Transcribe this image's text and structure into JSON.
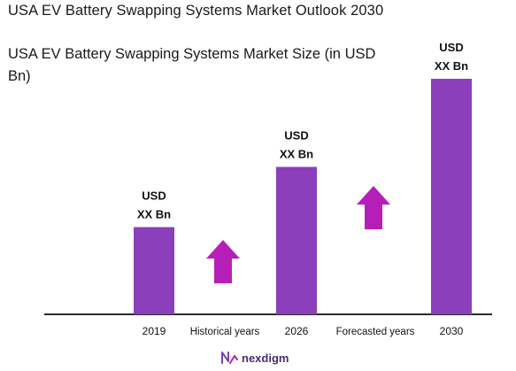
{
  "title": "USA EV Battery Swapping Systems Market Outlook 2030",
  "chart_data": {
    "type": "bar",
    "title": "USA EV Battery Swapping Systems Market Size (in USD Bn)",
    "categories": [
      "2019",
      "2026",
      "2030"
    ],
    "series": [
      {
        "values": [
          1,
          1.69,
          2.7
        ]
      }
    ],
    "value_labels": [
      {
        "line1": "USD",
        "line2": "XX Bn"
      },
      {
        "line1": "USD",
        "line2": "XX Bn"
      },
      {
        "line1": "USD",
        "line2": "XX Bn"
      }
    ],
    "period_labels": [
      "Historical years",
      "Forecasted years"
    ],
    "ylim": [
      0,
      2.7
    ],
    "bar_color": "#8b3fba",
    "arrow_color": "#b51fb8",
    "grid": false,
    "legend": "none"
  },
  "brand": {
    "name": "nexdigm",
    "icon": "nexdigm-logo-icon",
    "color": "#4b2b78"
  }
}
